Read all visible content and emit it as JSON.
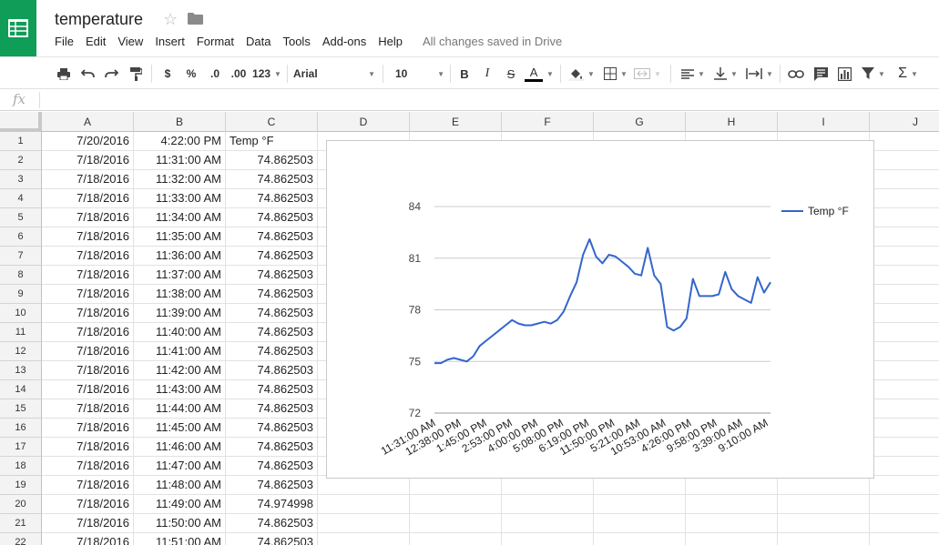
{
  "app": {
    "title": "temperature",
    "save_status": "All changes saved in Drive",
    "menu": [
      "File",
      "Edit",
      "View",
      "Insert",
      "Format",
      "Data",
      "Tools",
      "Add-ons",
      "Help"
    ]
  },
  "toolbar": {
    "currency": "$",
    "percent": "%",
    "dec_decrease": ".0",
    "dec_increase": ".00",
    "more_formats": "123",
    "font": "Arial",
    "font_size": "10",
    "bold": "B",
    "italic": "I",
    "strike": "S",
    "text_color": "A",
    "text_color_hex": "#000000"
  },
  "formula_bar": {
    "fx": "fx",
    "value": ""
  },
  "sheet": {
    "columns": [
      "A",
      "B",
      "C",
      "D",
      "E",
      "F",
      "G",
      "H",
      "I",
      "J"
    ],
    "rows": [
      {
        "n": "1",
        "a": "7/20/2016",
        "b": "4:22:00 PM",
        "c": "Temp °F"
      },
      {
        "n": "2",
        "a": "7/18/2016",
        "b": "11:31:00 AM",
        "c": "74.862503"
      },
      {
        "n": "3",
        "a": "7/18/2016",
        "b": "11:32:00 AM",
        "c": "74.862503"
      },
      {
        "n": "4",
        "a": "7/18/2016",
        "b": "11:33:00 AM",
        "c": "74.862503"
      },
      {
        "n": "5",
        "a": "7/18/2016",
        "b": "11:34:00 AM",
        "c": "74.862503"
      },
      {
        "n": "6",
        "a": "7/18/2016",
        "b": "11:35:00 AM",
        "c": "74.862503"
      },
      {
        "n": "7",
        "a": "7/18/2016",
        "b": "11:36:00 AM",
        "c": "74.862503"
      },
      {
        "n": "8",
        "a": "7/18/2016",
        "b": "11:37:00 AM",
        "c": "74.862503"
      },
      {
        "n": "9",
        "a": "7/18/2016",
        "b": "11:38:00 AM",
        "c": "74.862503"
      },
      {
        "n": "10",
        "a": "7/18/2016",
        "b": "11:39:00 AM",
        "c": "74.862503"
      },
      {
        "n": "11",
        "a": "7/18/2016",
        "b": "11:40:00 AM",
        "c": "74.862503"
      },
      {
        "n": "12",
        "a": "7/18/2016",
        "b": "11:41:00 AM",
        "c": "74.862503"
      },
      {
        "n": "13",
        "a": "7/18/2016",
        "b": "11:42:00 AM",
        "c": "74.862503"
      },
      {
        "n": "14",
        "a": "7/18/2016",
        "b": "11:43:00 AM",
        "c": "74.862503"
      },
      {
        "n": "15",
        "a": "7/18/2016",
        "b": "11:44:00 AM",
        "c": "74.862503"
      },
      {
        "n": "16",
        "a": "7/18/2016",
        "b": "11:45:00 AM",
        "c": "74.862503"
      },
      {
        "n": "17",
        "a": "7/18/2016",
        "b": "11:46:00 AM",
        "c": "74.862503"
      },
      {
        "n": "18",
        "a": "7/18/2016",
        "b": "11:47:00 AM",
        "c": "74.862503"
      },
      {
        "n": "19",
        "a": "7/18/2016",
        "b": "11:48:00 AM",
        "c": "74.862503"
      },
      {
        "n": "20",
        "a": "7/18/2016",
        "b": "11:49:00 AM",
        "c": "74.974998"
      },
      {
        "n": "21",
        "a": "7/18/2016",
        "b": "11:50:00 AM",
        "c": "74.862503"
      },
      {
        "n": "22",
        "a": "7/18/2016",
        "b": "11:51:00 AM",
        "c": "74.862503"
      }
    ]
  },
  "chart_data": {
    "type": "line",
    "title": "",
    "xlabel": "",
    "ylabel": "",
    "ylim": [
      72,
      84
    ],
    "yticks": [
      "84",
      "81",
      "78",
      "75",
      "72"
    ],
    "xticks": [
      "11:31:00 AM",
      "12:38:00 PM",
      "1:45:00 PM",
      "2:53:00 PM",
      "4:00:00 PM",
      "5:08:00 PM",
      "6:19:00 PM",
      "11:50:00 PM",
      "5:21:00 AM",
      "10:53:00 AM",
      "4:26:00 PM",
      "9:58:00 PM",
      "3:39:00 AM",
      "9:10:00 AM"
    ],
    "legend": "right",
    "grid": true,
    "series": [
      {
        "name": "Temp °F",
        "color": "#3366cc",
        "values": [
          74.9,
          74.9,
          75.1,
          75.2,
          75.1,
          75.0,
          75.3,
          75.9,
          76.2,
          76.5,
          76.8,
          77.1,
          77.4,
          77.2,
          77.1,
          77.1,
          77.2,
          77.3,
          77.2,
          77.4,
          77.9,
          78.8,
          79.6,
          81.2,
          82.1,
          81.1,
          80.7,
          81.2,
          81.1,
          80.8,
          80.5,
          80.1,
          80.0,
          81.6,
          80.0,
          79.5,
          77.0,
          76.8,
          77.0,
          77.5,
          79.8,
          78.8,
          78.8,
          78.8,
          78.9,
          80.2,
          79.2,
          78.8,
          78.6,
          78.4,
          79.9,
          79.0,
          79.6
        ]
      }
    ]
  }
}
